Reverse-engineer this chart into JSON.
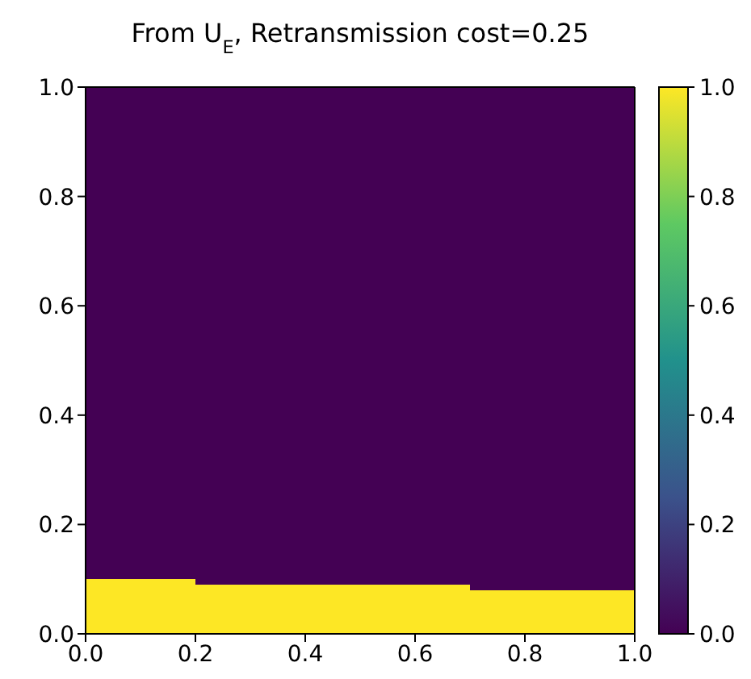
{
  "chart_data": {
    "type": "heatmap",
    "title": "From U$_{E}$, Retransmission cost=0.25",
    "xlim": [
      0,
      1
    ],
    "ylim": [
      0,
      1
    ],
    "xticks": [
      {
        "value": 0,
        "label": "0.0"
      },
      {
        "value": 0.2,
        "label": "0.2"
      },
      {
        "value": 0.4,
        "label": "0.4"
      },
      {
        "value": 0.6,
        "label": "0.6"
      },
      {
        "value": 0.8,
        "label": "0.8"
      },
      {
        "value": 1,
        "label": "1.0"
      }
    ],
    "yticks": [
      {
        "value": 0,
        "label": "0.0"
      },
      {
        "value": 0.2,
        "label": "0.2"
      },
      {
        "value": 0.4,
        "label": "0.4"
      },
      {
        "value": 0.6,
        "label": "0.6"
      },
      {
        "value": 0.8,
        "label": "0.8"
      },
      {
        "value": 1,
        "label": "1.0"
      }
    ],
    "clim": [
      0,
      1
    ],
    "cticks": [
      {
        "value": 0,
        "label": "0.0"
      },
      {
        "value": 0.2,
        "label": "0.2"
      },
      {
        "value": 0.4,
        "label": "0.4"
      },
      {
        "value": 0.6,
        "label": "0.6"
      },
      {
        "value": 0.8,
        "label": "0.8"
      },
      {
        "value": 1,
        "label": "1.0"
      }
    ],
    "cells": [
      [
        0,
        0,
        0,
        0,
        0,
        0,
        0,
        0,
        0,
        0
      ],
      [
        0,
        0,
        0,
        0,
        0,
        0,
        0,
        0,
        0,
        0
      ],
      [
        0,
        0,
        0,
        0,
        0,
        0,
        0,
        0,
        0,
        0
      ],
      [
        0,
        0,
        0,
        0,
        0,
        0,
        0,
        0,
        0,
        0
      ],
      [
        0,
        0,
        0,
        0,
        0,
        0,
        0,
        0,
        0,
        0
      ],
      [
        0,
        0,
        0,
        0,
        0,
        0,
        0,
        0,
        0,
        0
      ],
      [
        0,
        0,
        0,
        0,
        0,
        0,
        0,
        0,
        0,
        0
      ],
      [
        0,
        0,
        0,
        0,
        0,
        0,
        0,
        0,
        0,
        0
      ],
      [
        0,
        0,
        0,
        0,
        0,
        0,
        0,
        0,
        0,
        0
      ],
      [
        0,
        0,
        0,
        0,
        0,
        0,
        0,
        0,
        0,
        0
      ],
      [
        0,
        0,
        0,
        0,
        0,
        0,
        0,
        0,
        0,
        0
      ],
      [
        0,
        0,
        0,
        0,
        0,
        0,
        0,
        0,
        0,
        0
      ],
      [
        0,
        0,
        0,
        0,
        0,
        0,
        0,
        0,
        0,
        0
      ],
      [
        0,
        0,
        0,
        0,
        0,
        0,
        0,
        0,
        0,
        0
      ],
      [
        0,
        0,
        0,
        0,
        0,
        0,
        0,
        0,
        0,
        0
      ],
      [
        0,
        0,
        0,
        0,
        0,
        0,
        0,
        0,
        0,
        0
      ],
      [
        0,
        0,
        0,
        0,
        0,
        0,
        0,
        0,
        0,
        0
      ],
      [
        0,
        0,
        0,
        0,
        0,
        0,
        0,
        0,
        0,
        0
      ],
      [
        0,
        0,
        0,
        0,
        0,
        0,
        0,
        0,
        0,
        0
      ],
      [
        0,
        0,
        0,
        0,
        0,
        0,
        0,
        0,
        0,
        0
      ],
      [
        0,
        0,
        0,
        0,
        0,
        0,
        0,
        0,
        0,
        0
      ],
      [
        0,
        0,
        0,
        0,
        0,
        0,
        0,
        0,
        0,
        0
      ],
      [
        0,
        0,
        0,
        0,
        0,
        0,
        0,
        0,
        0,
        0
      ],
      [
        0,
        0,
        0,
        0,
        0,
        0,
        0,
        0,
        0,
        0
      ],
      [
        0,
        0,
        0,
        0,
        0,
        0,
        0,
        0,
        0,
        0
      ],
      [
        0,
        0,
        0,
        0,
        0,
        0,
        0,
        0,
        0,
        0
      ],
      [
        0,
        0,
        0,
        0,
        0,
        0,
        0,
        0,
        0,
        0
      ],
      [
        0,
        0,
        0,
        0,
        0,
        0,
        0,
        0,
        0,
        0
      ],
      [
        0,
        0,
        0,
        0,
        0,
        0,
        0,
        0,
        0,
        0
      ],
      [
        0,
        0,
        0,
        0,
        0,
        0,
        0,
        0,
        0,
        0
      ],
      [
        0,
        0,
        0,
        0,
        0,
        0,
        0,
        0,
        0,
        0
      ],
      [
        0,
        0,
        0,
        0,
        0,
        0,
        0,
        0,
        0,
        0
      ],
      [
        0,
        0,
        0,
        0,
        0,
        0,
        0,
        0,
        0,
        0
      ],
      [
        0,
        0,
        0,
        0,
        0,
        0,
        0,
        0,
        0,
        0
      ],
      [
        0,
        0,
        0,
        0,
        0,
        0,
        0,
        0,
        0,
        0
      ],
      [
        0,
        0,
        0,
        0,
        0,
        0,
        0,
        0,
        0,
        0
      ],
      [
        0,
        0,
        0,
        0,
        0,
        0,
        0,
        0,
        0,
        0
      ],
      [
        0,
        0,
        0,
        0,
        0,
        0,
        0,
        0,
        0,
        0
      ],
      [
        0,
        0,
        0,
        0,
        0,
        0,
        0,
        0,
        0,
        0
      ],
      [
        0,
        0,
        0,
        0,
        0,
        0,
        0,
        0,
        0,
        0
      ],
      [
        0,
        0,
        0,
        0,
        0,
        0,
        0,
        0,
        0,
        0
      ],
      [
        0,
        0,
        0,
        0,
        0,
        0,
        0,
        0,
        0,
        0
      ],
      [
        0,
        0,
        0,
        0,
        0,
        0,
        0,
        0,
        0,
        0
      ],
      [
        0,
        0,
        0,
        0,
        0,
        0,
        0,
        0,
        0,
        0
      ],
      [
        0,
        0,
        0,
        0,
        0,
        0,
        0,
        0,
        0,
        0
      ],
      [
        0,
        0,
        0,
        0,
        0,
        0,
        0,
        0,
        0,
        0
      ],
      [
        0,
        0,
        0,
        0,
        0,
        0,
        0,
        0,
        0,
        0
      ],
      [
        0,
        0,
        0,
        0,
        0,
        0,
        0,
        0,
        0,
        0
      ],
      [
        0,
        0,
        0,
        0,
        0,
        0,
        0,
        0,
        0,
        0
      ],
      [
        0,
        0,
        0,
        0,
        0,
        0,
        0,
        0,
        0,
        0
      ],
      [
        0,
        0,
        0,
        0,
        0,
        0,
        0,
        0,
        0,
        0
      ],
      [
        0,
        0,
        0,
        0,
        0,
        0,
        0,
        0,
        0,
        0
      ],
      [
        0,
        0,
        0,
        0,
        0,
        0,
        0,
        0,
        0,
        0
      ],
      [
        0,
        0,
        0,
        0,
        0,
        0,
        0,
        0,
        0,
        0
      ],
      [
        0,
        0,
        0,
        0,
        0,
        0,
        0,
        0,
        0,
        0
      ],
      [
        0,
        0,
        0,
        0,
        0,
        0,
        0,
        0,
        0,
        0
      ],
      [
        0,
        0,
        0,
        0,
        0,
        0,
        0,
        0,
        0,
        0
      ],
      [
        0,
        0,
        0,
        0,
        0,
        0,
        0,
        0,
        0,
        0
      ],
      [
        0,
        0,
        0,
        0,
        0,
        0,
        0,
        0,
        0,
        0
      ],
      [
        0,
        0,
        0,
        0,
        0,
        0,
        0,
        0,
        0,
        0
      ],
      [
        0,
        0,
        0,
        0,
        0,
        0,
        0,
        0,
        0,
        0
      ],
      [
        0,
        0,
        0,
        0,
        0,
        0,
        0,
        0,
        0,
        0
      ],
      [
        0,
        0,
        0,
        0,
        0,
        0,
        0,
        0,
        0,
        0
      ],
      [
        0,
        0,
        0,
        0,
        0,
        0,
        0,
        0,
        0,
        0
      ],
      [
        0,
        0,
        0,
        0,
        0,
        0,
        0,
        0,
        0,
        0
      ],
      [
        0,
        0,
        0,
        0,
        0,
        0,
        0,
        0,
        0,
        0
      ],
      [
        0,
        0,
        0,
        0,
        0,
        0,
        0,
        0,
        0,
        0
      ],
      [
        0,
        0,
        0,
        0,
        0,
        0,
        0,
        0,
        0,
        0
      ],
      [
        0,
        0,
        0,
        0,
        0,
        0,
        0,
        0,
        0,
        0
      ],
      [
        0,
        0,
        0,
        0,
        0,
        0,
        0,
        0,
        0,
        0
      ],
      [
        0,
        0,
        0,
        0,
        0,
        0,
        0,
        0,
        0,
        0
      ],
      [
        0,
        0,
        0,
        0,
        0,
        0,
        0,
        0,
        0,
        0
      ],
      [
        0,
        0,
        0,
        0,
        0,
        0,
        0,
        0,
        0,
        0
      ],
      [
        0,
        0,
        0,
        0,
        0,
        0,
        0,
        0,
        0,
        0
      ],
      [
        0,
        0,
        0,
        0,
        0,
        0,
        0,
        0,
        0,
        0
      ],
      [
        0,
        0,
        0,
        0,
        0,
        0,
        0,
        0,
        0,
        0
      ],
      [
        0,
        0,
        0,
        0,
        0,
        0,
        0,
        0,
        0,
        0
      ],
      [
        0,
        0,
        0,
        0,
        0,
        0,
        0,
        0,
        0,
        0
      ],
      [
        0,
        0,
        0,
        0,
        0,
        0,
        0,
        0,
        0,
        0
      ],
      [
        0,
        0,
        0,
        0,
        0,
        0,
        0,
        0,
        0,
        0
      ],
      [
        0,
        0,
        0,
        0,
        0,
        0,
        0,
        0,
        0,
        0
      ],
      [
        0,
        0,
        0,
        0,
        0,
        0,
        0,
        0,
        0,
        0
      ],
      [
        0,
        0,
        0,
        0,
        0,
        0,
        0,
        0,
        0,
        0
      ],
      [
        0,
        0,
        0,
        0,
        0,
        0,
        0,
        0,
        0,
        0
      ],
      [
        0,
        0,
        0,
        0,
        0,
        0,
        0,
        0,
        0,
        0
      ],
      [
        0,
        0,
        0,
        0,
        0,
        0,
        0,
        0,
        0,
        0
      ],
      [
        0,
        0,
        0,
        0,
        0,
        0,
        0,
        0,
        0,
        0
      ],
      [
        0,
        0,
        0,
        0,
        0,
        0,
        0,
        0,
        0,
        0
      ],
      [
        0,
        0,
        0,
        0,
        0,
        0,
        0,
        0,
        0,
        0
      ],
      [
        0,
        0,
        0,
        0,
        0,
        0,
        0,
        0,
        0,
        0
      ],
      [
        1,
        1,
        0,
        0,
        0,
        0,
        0,
        0,
        0,
        0
      ],
      [
        1,
        1,
        1,
        1,
        1,
        1,
        1,
        0,
        0,
        0
      ],
      [
        1,
        1,
        1,
        1,
        1,
        1,
        1,
        1,
        1,
        1
      ],
      [
        1,
        1,
        1,
        1,
        1,
        1,
        1,
        1,
        1,
        1
      ],
      [
        1,
        1,
        1,
        1,
        1,
        1,
        1,
        1,
        1,
        1
      ],
      [
        1,
        1,
        1,
        1,
        1,
        1,
        1,
        1,
        1,
        1
      ],
      [
        1,
        1,
        1,
        1,
        1,
        1,
        1,
        1,
        1,
        1
      ],
      [
        1,
        1,
        1,
        1,
        1,
        1,
        1,
        1,
        1,
        1
      ],
      [
        1,
        1,
        1,
        1,
        1,
        1,
        1,
        1,
        1,
        1
      ],
      [
        1,
        1,
        1,
        1,
        1,
        1,
        1,
        1,
        1,
        1
      ]
    ]
  }
}
